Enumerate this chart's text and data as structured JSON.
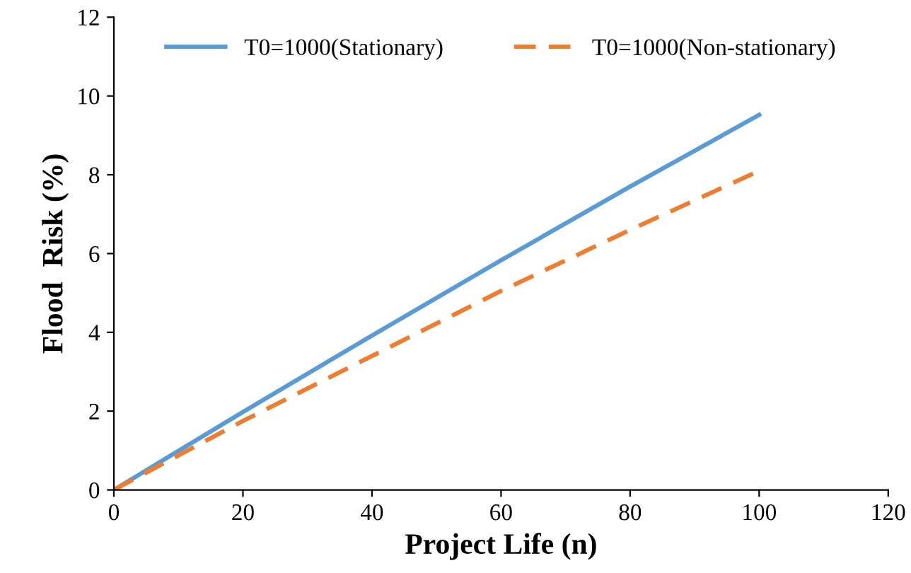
{
  "chart_data": {
    "type": "line",
    "xlabel": "Project Life (n)",
    "ylabel": "Flood  Risk (%)",
    "xlim": [
      0,
      120
    ],
    "xticks": [
      0,
      20,
      40,
      60,
      80,
      100,
      120
    ],
    "ylim": [
      0,
      12
    ],
    "yticks": [
      0,
      2,
      4,
      6,
      8,
      10,
      12
    ],
    "legend": "top",
    "grid": false,
    "series": [
      {
        "name": "T0=1000(Stationary)",
        "color": "#5b9bd5",
        "line_style": "solid",
        "x": [
          0,
          20,
          40,
          60,
          80,
          100
        ],
        "values": [
          0,
          1.98,
          3.92,
          5.83,
          7.7,
          9.52
        ]
      },
      {
        "name": "T0=1000(Non-stationary)",
        "color": "#ed7d31",
        "line_style": "dashed",
        "x": [
          0,
          20,
          40,
          60,
          80,
          100
        ],
        "values": [
          0,
          1.75,
          3.4,
          5.05,
          6.6,
          8.1
        ]
      }
    ]
  }
}
